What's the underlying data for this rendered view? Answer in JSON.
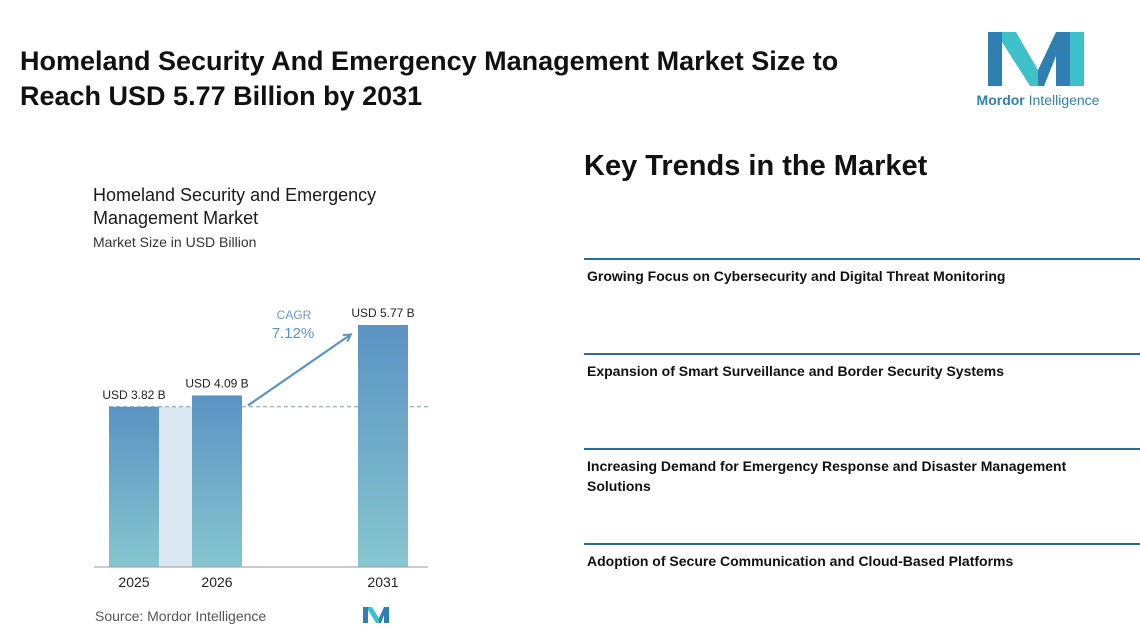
{
  "header": {
    "title": "Homeland Security And Emergency Management Market Size to Reach USD 5.77 Billion by 2031"
  },
  "logo": {
    "brand_bold": "Mordor",
    "brand_rest": " Intelligence"
  },
  "chart": {
    "title": "Homeland Security and Emergency Management Market",
    "subtitle": "Market Size in USD Billion",
    "cagr_label": "CAGR",
    "cagr_value": "7.12%"
  },
  "chart_data": {
    "type": "bar",
    "categories": [
      "2025",
      "2026",
      "2031"
    ],
    "values": [
      3.82,
      4.09,
      5.77
    ],
    "data_labels": [
      "USD 3.82 B",
      "USD 4.09 B",
      "USD 5.77 B"
    ],
    "title": "Homeland Security and Emergency Management Market",
    "subtitle": "Market Size in USD Billion",
    "annotation": "CAGR 7.12%",
    "grid": false
  },
  "footer": {
    "source": "Source:  Mordor Intelligence"
  },
  "trends": {
    "title": "Key Trends in the Market",
    "items": [
      {
        "label": "Growing Focus on Cybersecurity and Digital Threat Monitoring"
      },
      {
        "label": "Expansion of Smart Surveillance and Border Security Systems"
      },
      {
        "label": "Increasing Demand for Emergency Response and Disaster Management Solutions"
      },
      {
        "label": "Adoption of Secure Communication and Cloud-Based Platforms"
      }
    ]
  },
  "colors": {
    "bar_top": "#5b93c3",
    "bar_bottom": "#86c6cf",
    "band": "#dce8f1",
    "accent": "#2b6c93",
    "logo_teal": "#3fc1c9",
    "logo_blue": "#2f7fb0"
  }
}
